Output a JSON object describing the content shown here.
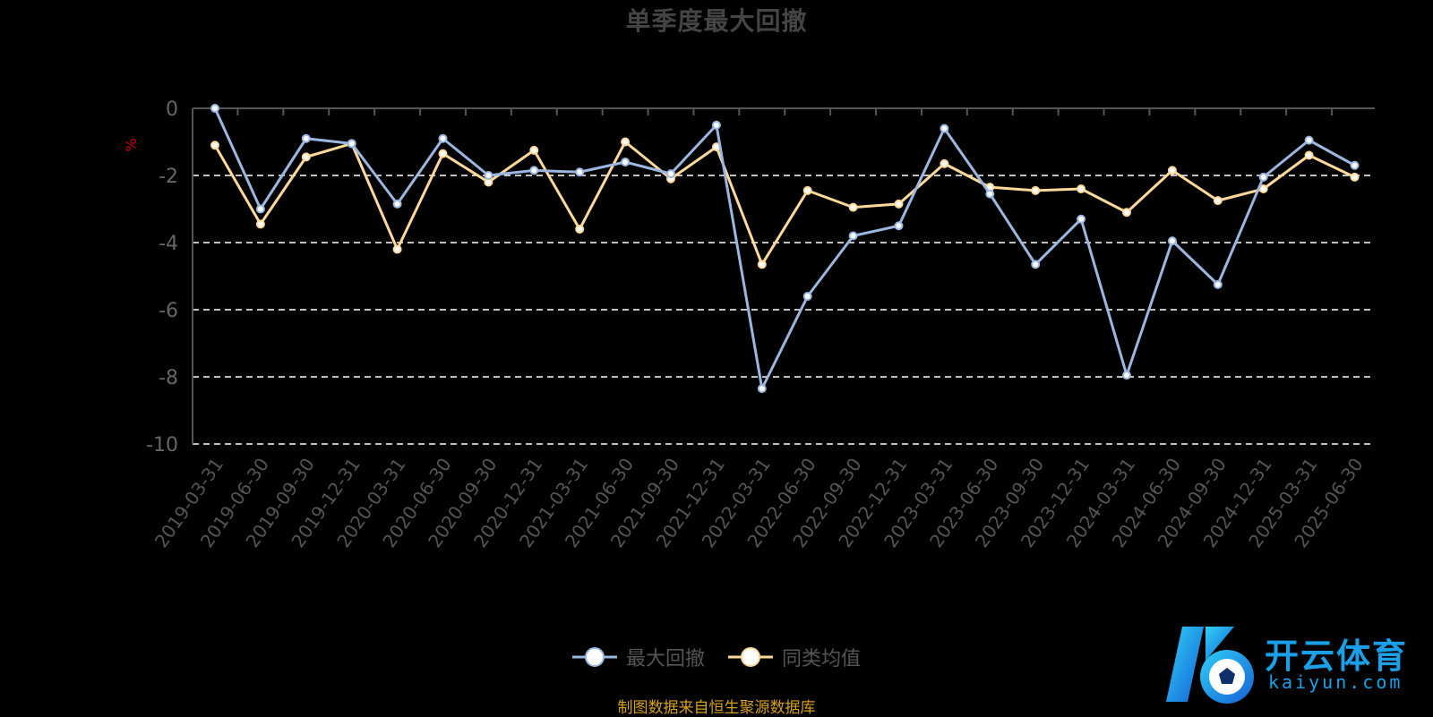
{
  "chart_data": {
    "type": "line",
    "title": "单季度最大回撤",
    "ylabel": "%",
    "ylim": [
      -10,
      0
    ],
    "yticks": [
      0,
      -2,
      -4,
      -6,
      -8,
      -10
    ],
    "grid": true,
    "legend_position": "bottom-center",
    "categories": [
      "2019-03-31",
      "2019-06-30",
      "2019-09-30",
      "2019-12-31",
      "2020-03-31",
      "2020-06-30",
      "2020-09-30",
      "2020-12-31",
      "2021-03-31",
      "2021-06-30",
      "2021-09-30",
      "2021-12-31",
      "2022-03-31",
      "2022-06-30",
      "2022-09-30",
      "2022-12-31",
      "2023-03-31",
      "2023-06-30",
      "2023-09-30",
      "2023-12-31",
      "2024-03-31",
      "2024-06-30",
      "2024-09-30",
      "2024-12-31",
      "2025-03-31",
      "2025-06-30"
    ],
    "series": [
      {
        "name": "最大回撤",
        "color": "#9bb7e0",
        "values": [
          0,
          -3.0,
          -0.9,
          -1.05,
          -2.85,
          -0.9,
          -2.0,
          -1.85,
          -1.9,
          -1.6,
          -1.95,
          -0.5,
          -8.35,
          -5.6,
          -3.8,
          -3.5,
          -0.6,
          -2.55,
          -4.65,
          -3.3,
          -7.95,
          -3.95,
          -5.25,
          -2.05,
          -0.95,
          -1.7
        ]
      },
      {
        "name": "同类均值",
        "color": "#ffd99a",
        "values": [
          -1.1,
          -3.45,
          -1.45,
          -1.05,
          -4.2,
          -1.35,
          -2.2,
          -1.25,
          -3.6,
          -1.0,
          -2.1,
          -1.15,
          -4.65,
          -2.45,
          -2.95,
          -2.85,
          -1.65,
          -2.35,
          -2.45,
          -2.4,
          -3.1,
          -1.85,
          -2.75,
          -2.4,
          -1.4,
          -2.05
        ]
      }
    ]
  },
  "footer": {
    "source": "制图数据来自恒生聚源数据库"
  },
  "watermark": {
    "brand": "开云体育",
    "domain": "kaiyun.com"
  }
}
